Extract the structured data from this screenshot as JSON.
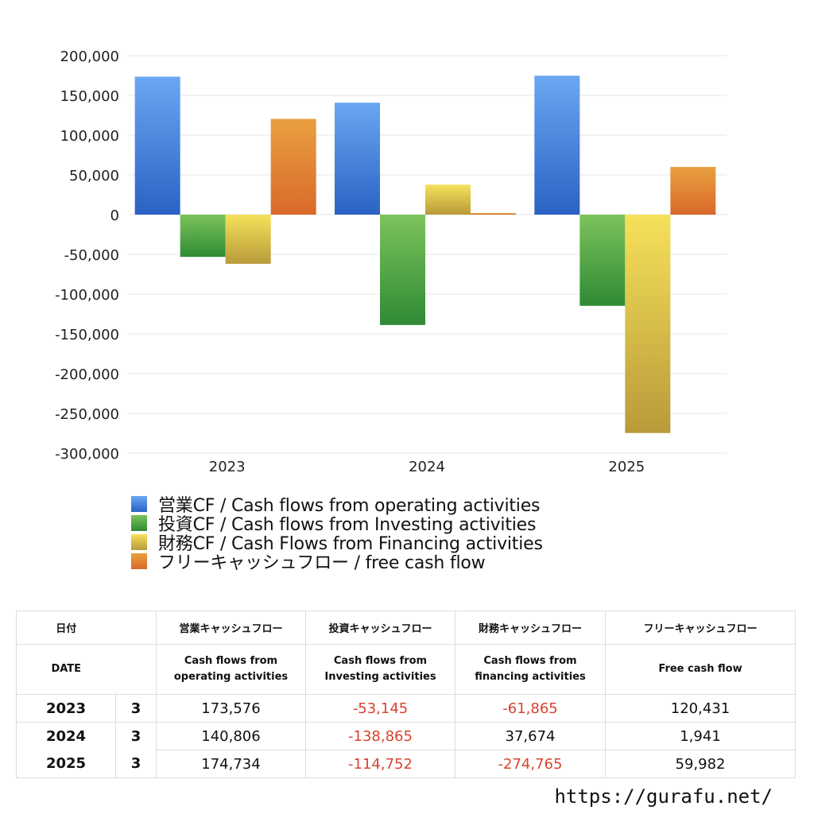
{
  "chart_data": {
    "type": "bar",
    "categories": [
      "2023",
      "2024",
      "2025"
    ],
    "series": [
      {
        "name": "営業CF / Cash flows from operating activities",
        "values": [
          173576,
          140806,
          174734
        ],
        "color_top": "#6aa7f2",
        "color_bottom": "#2a62c4"
      },
      {
        "name": "投資CF / Cash flows from Investing activities",
        "values": [
          -53145,
          -138865,
          -114752
        ],
        "color_top": "#7cc35c",
        "color_bottom": "#2f8a34"
      },
      {
        "name": "財務CF / Cash Flows from Financing activities",
        "values": [
          -61865,
          37674,
          -274765
        ],
        "color_top": "#f6e15a",
        "color_bottom": "#b99a3a"
      },
      {
        "name": "フリーキャッシュフロー / free cash flow",
        "values": [
          120431,
          1941,
          59982
        ],
        "color_top": "#e9a040",
        "color_bottom": "#d9692a"
      }
    ],
    "y_ticks": [
      "200,000",
      "150,000",
      "100,000",
      "50,000",
      "0",
      "-50,000",
      "-100,000",
      "-150,000",
      "-200,000",
      "-250,000",
      "-300,000"
    ],
    "ylim": [
      -300000,
      200000
    ],
    "grid": true,
    "legend_position": "bottom-left"
  },
  "table": {
    "header1": [
      "日付",
      "",
      "営業キャッシュフロー",
      "投資キャッシュフロー",
      "財務キャッシュフロー",
      "フリーキャッシュフロー"
    ],
    "header2": {
      "date": "DATE",
      "op_line1": "Cash flows from",
      "op_line2": "operating activities",
      "inv_line1": "Cash flows from",
      "inv_line2": "Investing activities",
      "fin_line1": "Cash flows from",
      "fin_line2": "financing activities",
      "free": "Free cash flow"
    },
    "rows": [
      {
        "year": "2023",
        "month": "3",
        "op": "173,576",
        "inv": "-53,145",
        "fin": "-61,865",
        "free": "120,431"
      },
      {
        "year": "2024",
        "month": "3",
        "op": "140,806",
        "inv": "-138,865",
        "fin": "37,674",
        "free": "1,941"
      },
      {
        "year": "2025",
        "month": "3",
        "op": "174,734",
        "inv": "-114,752",
        "fin": "-274,765",
        "free": "59,982"
      }
    ]
  },
  "footer": {
    "url": "https://gurafu.net/"
  }
}
